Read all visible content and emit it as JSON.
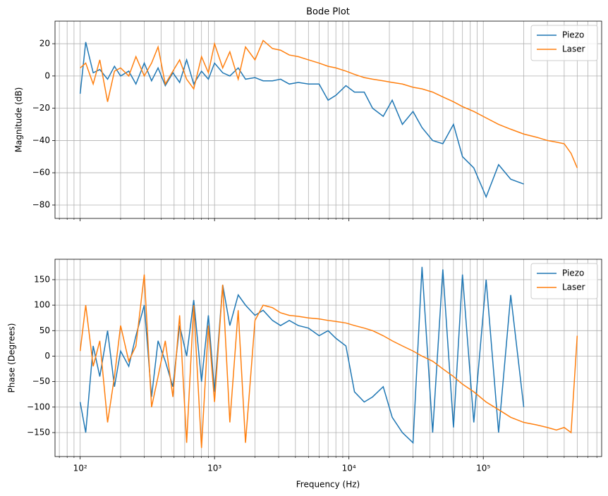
{
  "chart_data": [
    {
      "type": "line",
      "title": "Bode Plot",
      "ylabel": "Magnitude (dB)",
      "xscale": "log",
      "grid": true,
      "legend": "upper right",
      "xlim": [
        65,
        760000
      ],
      "xticks": [
        100,
        1000,
        10000,
        100000
      ],
      "xminorticks": [
        70,
        80,
        90,
        200,
        300,
        400,
        500,
        600,
        700,
        800,
        900,
        2000,
        3000,
        4000,
        5000,
        6000,
        7000,
        8000,
        9000,
        20000,
        30000,
        40000,
        50000,
        60000,
        70000,
        80000,
        90000,
        200000,
        300000,
        400000,
        500000,
        600000,
        700000
      ],
      "ylim": [
        -88.3,
        34
      ],
      "yticks": [
        {
          "value": -80,
          "label": "−80"
        },
        {
          "value": -60,
          "label": "−60"
        },
        {
          "value": -40,
          "label": "−40"
        },
        {
          "value": -20,
          "label": "−20"
        },
        0,
        20
      ],
      "series": [
        {
          "name": "Piezo",
          "color": "#1f77b4",
          "x": [
            100,
            110,
            125,
            140,
            160,
            180,
            200,
            230,
            260,
            300,
            340,
            380,
            430,
            490,
            550,
            620,
            700,
            800,
            900,
            1000,
            1150,
            1300,
            1500,
            1700,
            2000,
            2300,
            2700,
            3100,
            3600,
            4200,
            5000,
            6000,
            7000,
            8000,
            9500,
            11000,
            13000,
            15000,
            18000,
            21000,
            25000,
            30000,
            35000,
            42000,
            50000,
            60000,
            70000,
            85000,
            105000,
            130000,
            160000,
            200000
          ],
          "values": [
            -11,
            21,
            2,
            4,
            -2,
            6,
            0,
            3,
            -5,
            8,
            -3,
            5,
            -6,
            2,
            -4,
            10,
            -5,
            3,
            -2,
            8,
            2,
            0,
            5,
            -2,
            -1,
            -3,
            -3,
            -2,
            -5,
            -4,
            -5,
            -5,
            -15,
            -12,
            -6,
            -10,
            -10,
            -20,
            -25,
            -15,
            -30,
            -22,
            -32,
            -40,
            -42,
            -30,
            -50,
            -57,
            -75,
            -55,
            -64,
            -67
          ]
        },
        {
          "name": "Laser",
          "color": "#ff7f0e",
          "x": [
            100,
            110,
            125,
            140,
            160,
            180,
            200,
            230,
            260,
            300,
            340,
            380,
            430,
            490,
            550,
            620,
            700,
            800,
            900,
            1000,
            1150,
            1300,
            1500,
            1700,
            2000,
            2300,
            2700,
            3100,
            3600,
            4200,
            5000,
            6000,
            7000,
            8000,
            9500,
            11000,
            13000,
            15000,
            18000,
            21000,
            25000,
            30000,
            35000,
            42000,
            50000,
            60000,
            70000,
            85000,
            105000,
            130000,
            160000,
            200000,
            250000,
            300000,
            350000,
            400000,
            450000,
            500000
          ],
          "values": [
            5,
            8,
            -5,
            10,
            -16,
            3,
            5,
            0,
            12,
            0,
            8,
            18,
            -5,
            3,
            10,
            -2,
            -8,
            12,
            2,
            20,
            5,
            15,
            -2,
            18,
            10,
            22,
            17,
            16,
            13,
            12,
            10,
            8,
            6,
            5,
            3,
            1,
            -1,
            -2,
            -3,
            -4,
            -5,
            -7,
            -8,
            -10,
            -13,
            -16,
            -19,
            -22,
            -26,
            -30,
            -33,
            -36,
            -38,
            -40,
            -41,
            -42,
            -48,
            -57
          ]
        }
      ]
    },
    {
      "type": "line",
      "ylabel": "Phase (Degrees)",
      "xlabel": "Frequency (Hz)",
      "xscale": "log",
      "grid": true,
      "legend": "upper right",
      "xlim": [
        65,
        760000
      ],
      "xticks": [
        {
          "value": 100,
          "label": "10²"
        },
        {
          "value": 1000,
          "label": "10³"
        },
        {
          "value": 10000,
          "label": "10⁴"
        },
        {
          "value": 100000,
          "label": "10⁵"
        }
      ],
      "xminorticks": [
        70,
        80,
        90,
        200,
        300,
        400,
        500,
        600,
        700,
        800,
        900,
        2000,
        3000,
        4000,
        5000,
        6000,
        7000,
        8000,
        9000,
        20000,
        30000,
        40000,
        50000,
        60000,
        70000,
        80000,
        90000,
        200000,
        300000,
        400000,
        500000,
        600000,
        700000
      ],
      "ylim": [
        -197,
        190
      ],
      "yticks": [
        {
          "value": -150,
          "label": "−150"
        },
        {
          "value": -100,
          "label": "−100"
        },
        {
          "value": -50,
          "label": "−50"
        },
        0,
        50,
        100,
        150
      ],
      "series": [
        {
          "name": "Piezo",
          "color": "#1f77b4",
          "x": [
            100,
            110,
            125,
            140,
            160,
            180,
            200,
            230,
            260,
            300,
            340,
            380,
            430,
            490,
            550,
            620,
            700,
            800,
            900,
            1000,
            1150,
            1300,
            1500,
            1700,
            2000,
            2300,
            2700,
            3100,
            3600,
            4200,
            5000,
            6000,
            7000,
            8000,
            9500,
            11000,
            13000,
            15000,
            18000,
            21000,
            25000,
            30000,
            35000,
            42000,
            50000,
            60000,
            70000,
            85000,
            105000,
            130000,
            160000,
            200000
          ],
          "values": [
            -90,
            -150,
            20,
            -40,
            50,
            -60,
            10,
            -20,
            40,
            100,
            -80,
            30,
            -10,
            -60,
            60,
            0,
            110,
            -50,
            80,
            -70,
            140,
            60,
            120,
            100,
            80,
            90,
            70,
            60,
            70,
            60,
            55,
            40,
            50,
            35,
            20,
            -70,
            -90,
            -80,
            -60,
            -120,
            -150,
            -170,
            175,
            -150,
            170,
            -140,
            160,
            -130,
            150,
            -150,
            120,
            -100
          ]
        },
        {
          "name": "Laser",
          "color": "#ff7f0e",
          "x": [
            100,
            110,
            125,
            140,
            160,
            180,
            200,
            230,
            260,
            300,
            340,
            380,
            430,
            490,
            550,
            620,
            700,
            800,
            900,
            1000,
            1150,
            1300,
            1500,
            1700,
            2000,
            2300,
            2700,
            3100,
            3600,
            4200,
            5000,
            6000,
            7000,
            8000,
            9500,
            11000,
            13000,
            15000,
            18000,
            21000,
            25000,
            30000,
            35000,
            42000,
            50000,
            60000,
            70000,
            85000,
            105000,
            130000,
            160000,
            200000,
            250000,
            300000,
            350000,
            400000,
            450000,
            500000
          ],
          "values": [
            10,
            100,
            -20,
            30,
            -130,
            -40,
            60,
            -10,
            20,
            160,
            -100,
            -40,
            30,
            -80,
            80,
            -170,
            100,
            -180,
            60,
            -90,
            140,
            -130,
            90,
            -170,
            70,
            100,
            95,
            85,
            80,
            78,
            75,
            73,
            70,
            68,
            65,
            60,
            55,
            50,
            40,
            30,
            20,
            10,
            0,
            -10,
            -25,
            -40,
            -55,
            -70,
            -90,
            -105,
            -120,
            -130,
            -135,
            -140,
            -145,
            -140,
            -150,
            40
          ]
        }
      ]
    }
  ]
}
